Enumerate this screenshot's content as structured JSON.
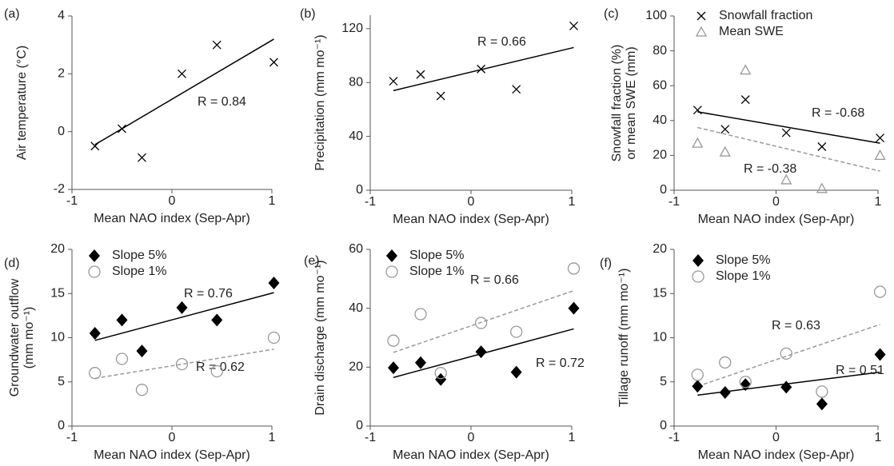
{
  "chart_data": [
    {
      "type": "scatter",
      "label": "(a)",
      "xlabel": "Mean NAO index (Sep-Apr)",
      "ylabel": [
        "Air temperature (°C)"
      ],
      "xlim": [
        -1,
        1
      ],
      "xticks": [
        -1,
        0,
        1
      ],
      "ylim": [
        -2,
        4
      ],
      "yticks": [
        -2,
        0,
        2,
        4
      ],
      "x": [
        -0.77,
        -0.5,
        -0.3,
        0.1,
        0.45,
        1.02
      ],
      "series": [
        {
          "color": "#000000",
          "marker": "x",
          "values": [
            -0.5,
            0.1,
            -0.9,
            2.0,
            3.0,
            2.4
          ]
        }
      ],
      "fits": [
        {
          "x": [
            -0.77,
            1.02
          ],
          "values": [
            -0.45,
            3.2
          ],
          "color": "#000000",
          "dash": false,
          "label": "R = 0.84"
        }
      ]
    },
    {
      "type": "scatter",
      "label": "(b)",
      "xlabel": "Mean NAO index (Sep-Apr)",
      "ylabel": [
        "Precipitation (mm mo⁻¹)"
      ],
      "xlim": [
        -1,
        1
      ],
      "xticks": [
        -1,
        0,
        1
      ],
      "ylim": [
        0,
        130
      ],
      "yticks": [
        0,
        40,
        80,
        120
      ],
      "x": [
        -0.77,
        -0.5,
        -0.3,
        0.1,
        0.45,
        1.02
      ],
      "series": [
        {
          "color": "#000000",
          "marker": "x",
          "values": [
            81,
            86,
            70,
            90,
            75,
            122
          ]
        }
      ],
      "fits": [
        {
          "x": [
            -0.77,
            1.02
          ],
          "values": [
            74,
            106
          ],
          "color": "#000000",
          "dash": false,
          "label": "R = 0.66"
        }
      ]
    },
    {
      "type": "scatter",
      "label": "(c)",
      "xlabel": "Mean NAO index (Sep-Apr)",
      "ylabel": [
        "Snowfall fraction (%)",
        "or mean SWE (mm)"
      ],
      "xlim": [
        -1,
        1
      ],
      "xticks": [
        -1,
        0,
        1
      ],
      "ylim": [
        0,
        100
      ],
      "yticks": [
        0,
        20,
        40,
        60,
        80,
        100
      ],
      "x": [
        -0.77,
        -0.5,
        -0.3,
        0.1,
        0.45,
        1.02
      ],
      "series": [
        {
          "name": "Snowfall fraction",
          "color": "#000000",
          "marker": "x",
          "values": [
            46,
            35,
            52,
            33,
            25,
            30
          ]
        },
        {
          "name": "Mean SWE",
          "color": "#999999",
          "marker": "triangle",
          "values": [
            27,
            22,
            69,
            6,
            1,
            20
          ]
        }
      ],
      "fits": [
        {
          "x": [
            -0.77,
            1.02
          ],
          "values": [
            45,
            27
          ],
          "color": "#000000",
          "dash": false,
          "label": "R = -0.68"
        },
        {
          "x": [
            -0.77,
            1.02
          ],
          "values": [
            36,
            11
          ],
          "color": "#999999",
          "dash": true,
          "label": "R = -0.38"
        }
      ]
    },
    {
      "type": "scatter",
      "label": "(d)",
      "xlabel": "Mean NAO index (Sep-Apr)",
      "ylabel": [
        "Groundwater  outflow",
        "(mm mo⁻¹)"
      ],
      "xlim": [
        -1,
        1
      ],
      "xticks": [
        -1,
        0,
        1
      ],
      "ylim": [
        0,
        20
      ],
      "yticks": [
        0,
        5,
        10,
        15,
        20
      ],
      "x": [
        -0.77,
        -0.5,
        -0.3,
        0.1,
        0.45,
        1.02
      ],
      "series": [
        {
          "name": "Slope 5%",
          "color": "#000000",
          "marker": "diamond",
          "values": [
            10.5,
            12,
            8.5,
            13.4,
            12,
            16.2
          ]
        },
        {
          "name": "Slope 1%",
          "color": "#999999",
          "marker": "circle",
          "values": [
            6,
            7.6,
            4.1,
            7,
            6.2,
            10
          ]
        }
      ],
      "fits": [
        {
          "x": [
            -0.77,
            1.02
          ],
          "values": [
            9.7,
            15.1
          ],
          "color": "#000000",
          "dash": false,
          "label": "R = 0.76"
        },
        {
          "x": [
            -0.77,
            1.02
          ],
          "values": [
            5.4,
            8.7
          ],
          "color": "#999999",
          "dash": true,
          "label": "R = 0.62"
        }
      ]
    },
    {
      "type": "scatter",
      "label": "(e)",
      "xlabel": "Mean NAO index (Sep-Apr)",
      "ylabel": [
        "Drain discharge (mm mo⁻¹)"
      ],
      "xlim": [
        -1,
        1
      ],
      "xticks": [
        -1,
        0,
        1
      ],
      "ylim": [
        0,
        60
      ],
      "yticks": [
        0,
        20,
        40,
        60
      ],
      "x": [
        -0.77,
        -0.5,
        -0.3,
        0.1,
        0.45,
        1.02
      ],
      "series": [
        {
          "name": "Slope 5%",
          "color": "#000000",
          "marker": "diamond",
          "values": [
            19.8,
            21.5,
            15.8,
            25.2,
            18.3,
            40
          ]
        },
        {
          "name": "Slope 1%",
          "color": "#999999",
          "marker": "circle",
          "values": [
            29,
            38,
            18,
            35,
            32,
            53.5
          ]
        }
      ],
      "fits": [
        {
          "x": [
            -0.77,
            1.02
          ],
          "values": [
            16.5,
            33
          ],
          "color": "#000000",
          "dash": false,
          "label": "R = 0.72"
        },
        {
          "x": [
            -0.77,
            1.02
          ],
          "values": [
            25,
            46
          ],
          "color": "#999999",
          "dash": true,
          "label": "R = 0.66"
        }
      ]
    },
    {
      "type": "scatter",
      "label": "(f)",
      "xlabel": "Mean NAO index (Sep-Apr)",
      "ylabel": [
        "Tillage runoff (mm mo⁻¹)"
      ],
      "xlim": [
        -1,
        1
      ],
      "xticks": [
        -1,
        0,
        1
      ],
      "ylim": [
        0,
        20
      ],
      "yticks": [
        0,
        5,
        10,
        15,
        20
      ],
      "x": [
        -0.77,
        -0.5,
        -0.3,
        0.1,
        0.45,
        1.02
      ],
      "series": [
        {
          "name": "Slope 5%",
          "color": "#000000",
          "marker": "diamond",
          "values": [
            4.5,
            3.8,
            4.7,
            4.4,
            2.5,
            8.1
          ]
        },
        {
          "name": "Slope 1%",
          "color": "#999999",
          "marker": "circle",
          "values": [
            5.8,
            7.2,
            5.0,
            8.2,
            3.9,
            15.2
          ]
        }
      ],
      "fits": [
        {
          "x": [
            -0.77,
            1.02
          ],
          "values": [
            3.5,
            6.1
          ],
          "color": "#000000",
          "dash": false,
          "label": "R = 0.51"
        },
        {
          "x": [
            -0.77,
            1.02
          ],
          "values": [
            4.5,
            11.5
          ],
          "color": "#999999",
          "dash": true,
          "label": "R = 0.63"
        }
      ]
    }
  ]
}
